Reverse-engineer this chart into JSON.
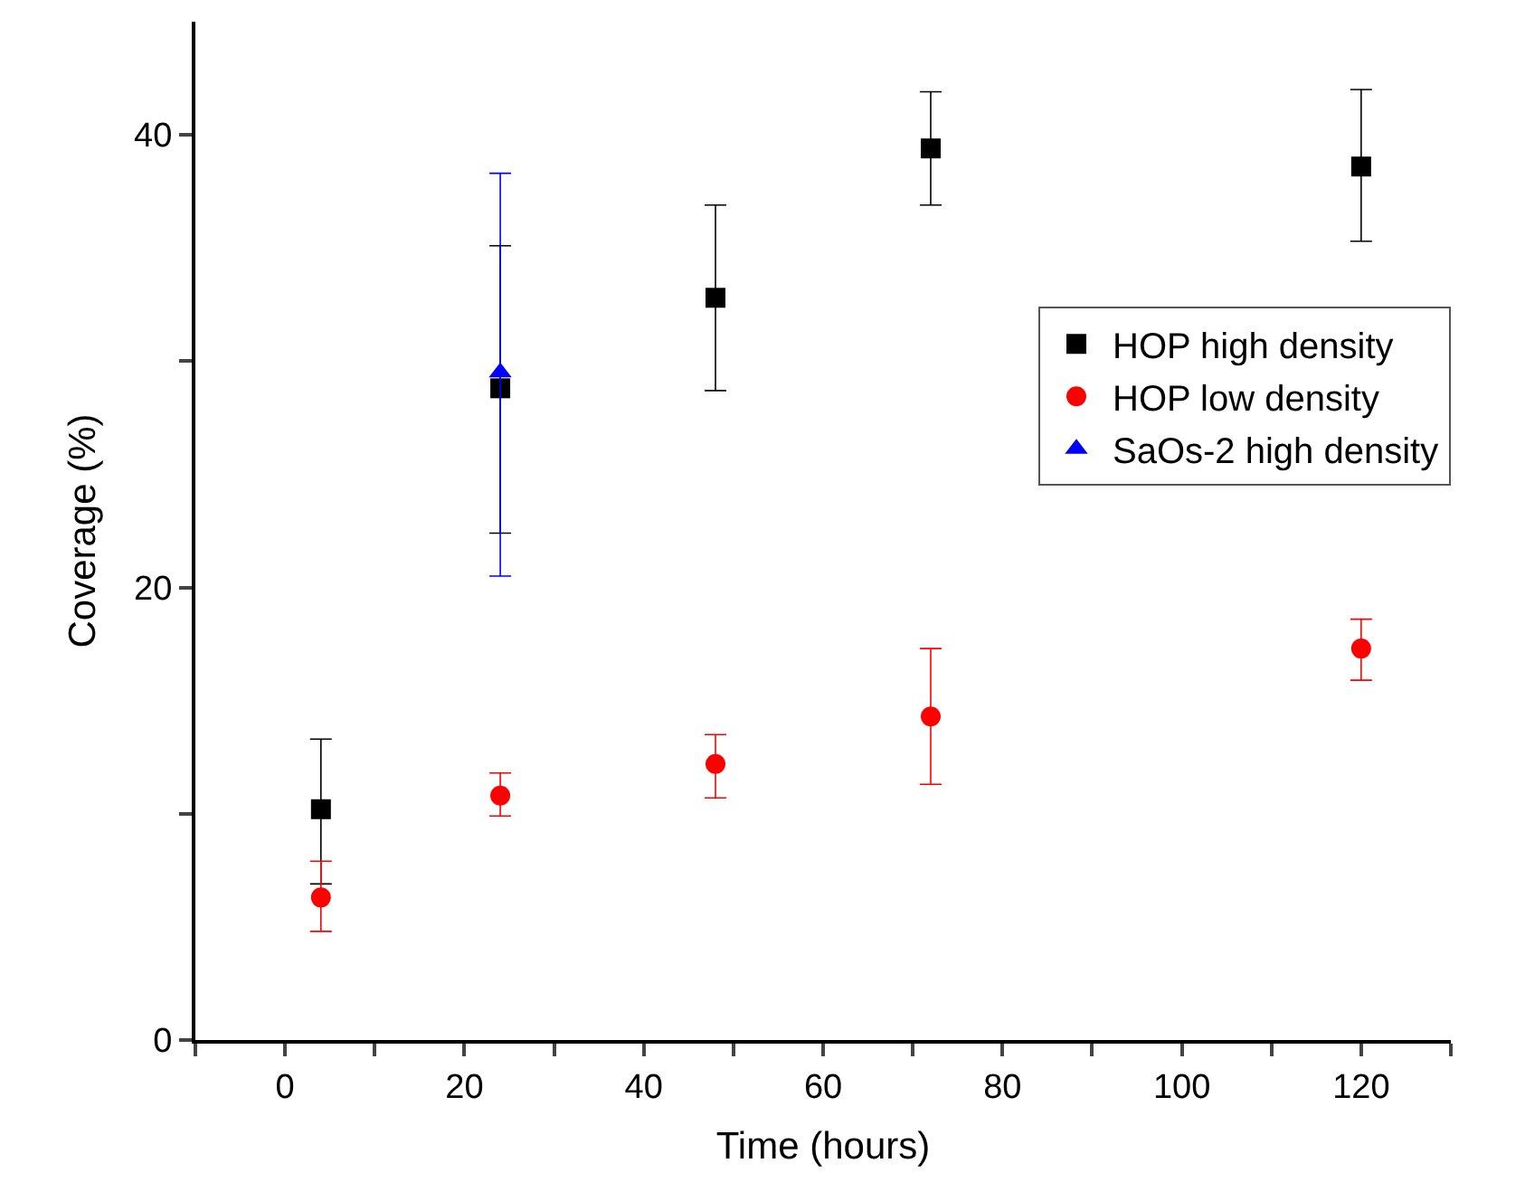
{
  "chart_data": {
    "type": "scatter",
    "xlabel": "Time (hours)",
    "ylabel": "Coverage (%)",
    "xlim": [
      -10,
      130
    ],
    "xticks": [
      {
        "value": -10,
        "label": null
      },
      0,
      {
        "value": 10,
        "label": null
      },
      20,
      {
        "value": 30,
        "label": null
      },
      40,
      {
        "value": 50,
        "label": null
      },
      60,
      {
        "value": 70,
        "label": null
      },
      80,
      {
        "value": 90,
        "label": null
      },
      100,
      {
        "value": 110,
        "label": null
      },
      120,
      {
        "value": 130,
        "label": null
      }
    ],
    "ylim": [
      0,
      45
    ],
    "yticks": [
      0,
      {
        "value": 10,
        "label": null
      },
      20,
      {
        "value": 30,
        "label": null
      },
      40
    ],
    "legend": "right",
    "series": [
      {
        "name": "HOP high density",
        "color": "#000000",
        "marker": "square",
        "x": [
          4,
          24,
          48,
          72,
          120
        ],
        "values": [
          10.2,
          28.8,
          32.8,
          39.4,
          38.6
        ],
        "errors": [
          [
            6.9,
            13.3
          ],
          [
            22.4,
            35.1
          ],
          [
            28.7,
            36.9
          ],
          [
            36.9,
            41.9
          ],
          [
            35.3,
            42.0
          ]
        ]
      },
      {
        "name": "HOP low density",
        "color": "#ff0000",
        "marker": "circle",
        "x": [
          4,
          24,
          48,
          72,
          120
        ],
        "values": [
          6.3,
          10.8,
          12.2,
          14.3,
          17.3
        ],
        "errors": [
          [
            4.8,
            7.9
          ],
          [
            9.9,
            11.8
          ],
          [
            10.7,
            13.5
          ],
          [
            11.3,
            17.3
          ],
          [
            15.9,
            18.6
          ]
        ]
      },
      {
        "name": "SaOs-2 high density",
        "color": "#0000ff",
        "marker": "triangle",
        "x": [
          24
        ],
        "values": [
          29.5
        ],
        "errors": [
          [
            20.5,
            38.3
          ]
        ]
      }
    ]
  }
}
